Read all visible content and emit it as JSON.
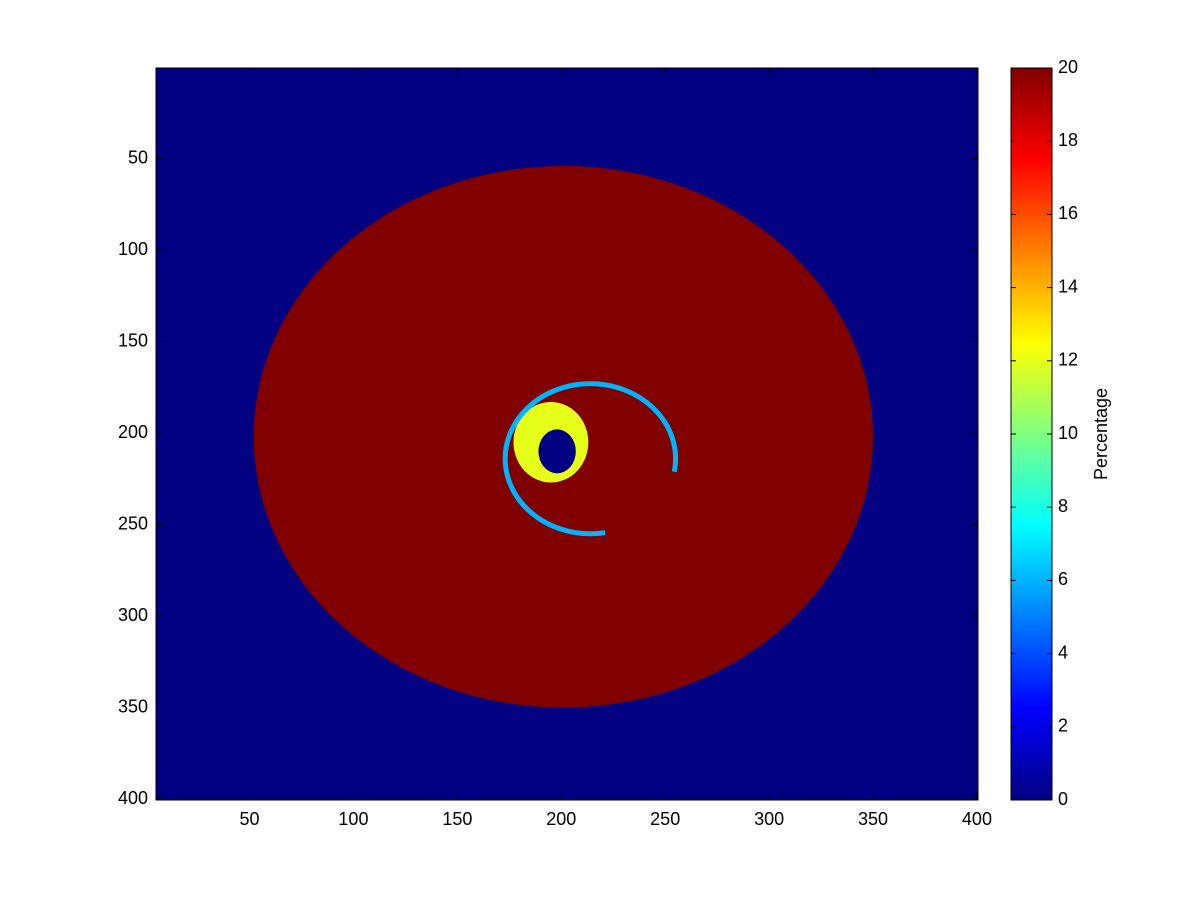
{
  "chart_data": {
    "type": "heatmap",
    "colormap": "jet",
    "xlim": [
      5,
      400.5
    ],
    "ylim": [
      0.5,
      400.5
    ],
    "y_reversed": true,
    "xticks": [
      50,
      100,
      150,
      200,
      250,
      300,
      350,
      400
    ],
    "yticks": [
      50,
      100,
      150,
      200,
      250,
      300,
      350,
      400
    ],
    "background": 0,
    "regions": [
      {
        "cx": 201,
        "cy": 202,
        "rx": 149,
        "ry": 148,
        "value": 20
      },
      {
        "cx": 195,
        "cy": 205,
        "rx": 18,
        "ry": 22,
        "value": 12
      },
      {
        "cx": 198,
        "cy": 210,
        "rx": 9,
        "ry": 12,
        "value": 0
      }
    ],
    "rings": [
      {
        "cx": 214,
        "cy": 214,
        "r": 41,
        "value": 6
      }
    ],
    "colorbar": {
      "label": "Percentage",
      "clim": [
        0,
        20
      ],
      "ticks": [
        0,
        2,
        4,
        6,
        8,
        10,
        12,
        14,
        16,
        18,
        20
      ]
    }
  }
}
